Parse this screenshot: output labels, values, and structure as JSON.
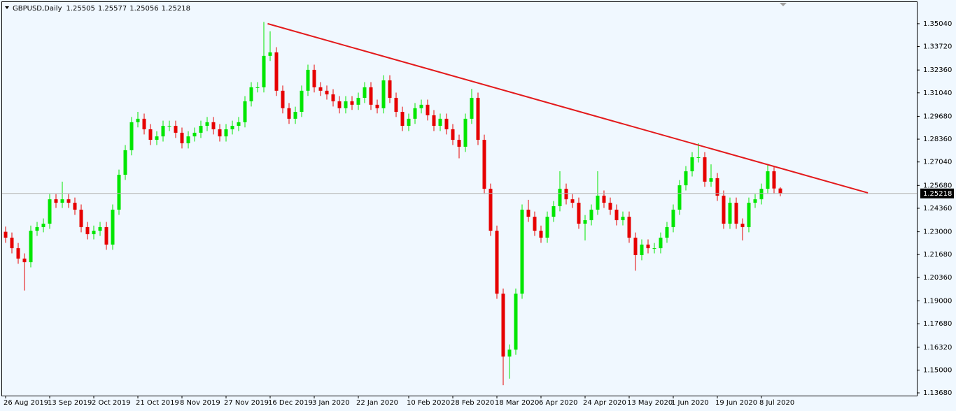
{
  "chart_data": {
    "type": "candlestick",
    "symbol": "GBPUSD,Daily",
    "header_ohlc": [
      1.25505,
      1.25577,
      1.25056,
      1.25218
    ],
    "current_price": 1.25218,
    "up_color": "#00e600",
    "down_color": "#e60000",
    "trendline_color": "#e31a1c",
    "ylim": [
      1.1352,
      1.3633
    ],
    "yticks": [
      {
        "value": 1.3504,
        "label": "1.35040"
      },
      {
        "value": 1.3372,
        "label": "1.33720"
      },
      {
        "value": 1.3236,
        "label": "1.32360"
      },
      {
        "value": 1.3104,
        "label": "1.31040"
      },
      {
        "value": 1.2968,
        "label": "1.29680"
      },
      {
        "value": 1.2836,
        "label": "1.28360"
      },
      {
        "value": 1.2704,
        "label": "1.27040"
      },
      {
        "value": 1.2568,
        "label": "1.25680"
      },
      {
        "value": 1.2436,
        "label": "1.24360"
      },
      {
        "value": 1.23,
        "label": "1.23000"
      },
      {
        "value": 1.2168,
        "label": "1.21680"
      },
      {
        "value": 1.2036,
        "label": "1.20360"
      },
      {
        "value": 1.19,
        "label": "1.19000"
      },
      {
        "value": 1.1768,
        "label": "1.17680"
      },
      {
        "value": 1.1632,
        "label": "1.16320"
      },
      {
        "value": 1.15,
        "label": "1.15000"
      },
      {
        "value": 1.1368,
        "label": "1.13680"
      }
    ],
    "categories": [
      "26 Aug 2019",
      null,
      null,
      null,
      null,
      null,
      null,
      "13 Sep 2019",
      null,
      null,
      null,
      null,
      null,
      null,
      "2 Oct 2019",
      null,
      null,
      null,
      null,
      null,
      null,
      "21 Oct 2019",
      null,
      null,
      null,
      null,
      null,
      null,
      "8 Nov 2019",
      null,
      null,
      null,
      null,
      null,
      null,
      "27 Nov 2019",
      null,
      null,
      null,
      null,
      null,
      null,
      "16 Dec 2019",
      null,
      null,
      null,
      null,
      null,
      null,
      "3 Jan 2020",
      null,
      null,
      null,
      null,
      null,
      null,
      "22 Jan 2020",
      null,
      null,
      null,
      null,
      null,
      null,
      null,
      "10 Feb 2020",
      null,
      null,
      null,
      null,
      null,
      null,
      "28 Feb 2020",
      null,
      null,
      null,
      null,
      null,
      null,
      "18 Mar 2020",
      null,
      null,
      null,
      null,
      null,
      null,
      "6 Apr 2020",
      null,
      null,
      null,
      null,
      null,
      null,
      "24 Apr 2020",
      null,
      null,
      null,
      null,
      null,
      null,
      "13 May 2020",
      null,
      null,
      null,
      null,
      null,
      null,
      "1 Jun 2020",
      null,
      null,
      null,
      null,
      null,
      null,
      "19 Jun 2020",
      null,
      null,
      null,
      null,
      null,
      null,
      "8 Jul 2020",
      null,
      null,
      null
    ],
    "open": [
      1.23,
      1.2266,
      1.2205,
      1.2145,
      1.2124,
      1.2306,
      1.2327,
      1.2347,
      1.2488,
      1.2468,
      1.2488,
      1.2468,
      1.2428,
      1.2327,
      1.2286,
      1.2306,
      1.2327,
      1.2226,
      1.2428,
      1.263,
      1.2772,
      1.2934,
      1.2954,
      1.2893,
      1.2832,
      1.2852,
      1.2913,
      1.2913,
      1.2873,
      1.2812,
      1.2852,
      1.2873,
      1.2913,
      1.2934,
      1.2893,
      1.2852,
      1.2893,
      1.2913,
      1.2934,
      1.3055,
      1.3136,
      1.3136,
      1.3318,
      1.3338,
      1.3116,
      1.3015,
      1.2954,
      1.2994,
      1.3116,
      1.3237,
      1.3136,
      1.3116,
      1.3095,
      1.3055,
      1.3015,
      1.3055,
      1.3035,
      1.3075,
      1.3136,
      1.3035,
      1.3015,
      1.3176,
      1.3075,
      1.2994,
      1.2913,
      1.2954,
      1.3015,
      1.3035,
      1.2974,
      1.2913,
      1.2954,
      1.2893,
      1.2832,
      1.2792,
      1.2954,
      1.3075,
      1.2832,
      1.2549,
      1.2306,
      1.1942,
      1.1578,
      1.1618,
      1.1942,
      1.2428,
      1.2387,
      1.2306,
      1.2266,
      1.2387,
      1.2448,
      1.2549,
      1.2488,
      1.2468,
      1.2347,
      1.2367,
      1.2428,
      1.2509,
      1.2468,
      1.2428,
      1.2367,
      1.2387,
      1.2266,
      1.2165,
      1.2226,
      1.2205,
      1.2205,
      1.2266,
      1.2327,
      1.2428,
      1.2569,
      1.265,
      1.2731,
      1.2731,
      1.259,
      1.261,
      1.2509,
      1.2347,
      1.2468,
      1.2347,
      1.2327,
      1.2468,
      1.2488,
      1.2549,
      1.265,
      1.25505
    ],
    "high": [
      1.233,
      1.2296,
      1.2235,
      1.2175,
      1.2336,
      1.2357,
      1.2377,
      1.2518,
      1.2518,
      1.259,
      1.2518,
      1.2498,
      1.2458,
      1.2357,
      1.2336,
      1.2357,
      1.2357,
      1.2458,
      1.266,
      1.2802,
      1.2964,
      1.2994,
      1.2984,
      1.2923,
      1.2882,
      1.2943,
      1.2943,
      1.2943,
      1.2903,
      1.2882,
      1.2903,
      1.2943,
      1.2964,
      1.2964,
      1.2923,
      1.2923,
      1.2943,
      1.2964,
      1.3085,
      1.3166,
      1.3166,
      1.3514,
      1.346,
      1.3368,
      1.3146,
      1.3045,
      1.3024,
      1.3146,
      1.3267,
      1.3267,
      1.3166,
      1.3146,
      1.3125,
      1.3085,
      1.3085,
      1.3085,
      1.3105,
      1.3166,
      1.3166,
      1.3065,
      1.3206,
      1.3206,
      1.3105,
      1.3024,
      1.2984,
      1.3045,
      1.3065,
      1.3065,
      1.3004,
      1.2984,
      1.2984,
      1.2923,
      1.2862,
      1.2984,
      1.3127,
      1.3105,
      1.2862,
      1.2579,
      1.2336,
      1.1972,
      1.1648,
      1.1972,
      1.2458,
      1.2485,
      1.2417,
      1.2336,
      1.2417,
      1.2478,
      1.265,
      1.2579,
      1.2518,
      1.2498,
      1.2397,
      1.2458,
      1.265,
      1.2539,
      1.2498,
      1.2458,
      1.2417,
      1.2417,
      1.2296,
      1.2256,
      1.2256,
      1.2235,
      1.2296,
      1.2357,
      1.2458,
      1.2599,
      1.268,
      1.2761,
      1.2812,
      1.2761,
      1.269,
      1.264,
      1.2539,
      1.2498,
      1.2498,
      1.2377,
      1.2498,
      1.2518,
      1.2579,
      1.269,
      1.268,
      1.25577
    ],
    "low": [
      1.2236,
      1.2175,
      1.2115,
      1.196,
      1.2094,
      1.2276,
      1.2297,
      1.2317,
      1.2438,
      1.2438,
      1.2438,
      1.2398,
      1.2297,
      1.2256,
      1.2256,
      1.2276,
      1.2196,
      1.2196,
      1.2398,
      1.26,
      1.2742,
      1.2904,
      1.2863,
      1.2802,
      1.2802,
      1.2822,
      1.2883,
      1.2843,
      1.2782,
      1.2782,
      1.2822,
      1.2843,
      1.2883,
      1.2863,
      1.2822,
      1.2822,
      1.2863,
      1.2883,
      1.2904,
      1.3025,
      1.3106,
      1.3106,
      1.3288,
      1.3086,
      1.2985,
      1.2924,
      1.2924,
      1.2964,
      1.3086,
      1.3106,
      1.3086,
      1.3065,
      1.3025,
      1.2985,
      1.2985,
      1.3005,
      1.3005,
      1.3045,
      1.3005,
      1.2985,
      1.2985,
      1.3045,
      1.2964,
      1.2883,
      1.2883,
      1.2924,
      1.2985,
      1.2944,
      1.2883,
      1.2883,
      1.2863,
      1.2802,
      1.2725,
      1.2762,
      1.2924,
      1.2802,
      1.2519,
      1.2276,
      1.1912,
      1.1412,
      1.145,
      1.1588,
      1.1912,
      1.2357,
      1.2276,
      1.2236,
      1.2236,
      1.2357,
      1.2418,
      1.2458,
      1.2438,
      1.2317,
      1.225,
      1.2337,
      1.2398,
      1.2438,
      1.2398,
      1.2337,
      1.2337,
      1.2236,
      1.2075,
      1.2135,
      1.2175,
      1.2175,
      1.2175,
      1.2236,
      1.2297,
      1.2398,
      1.2539,
      1.262,
      1.2701,
      1.256,
      1.256,
      1.2479,
      1.2317,
      1.2317,
      1.2317,
      1.225,
      1.2297,
      1.2438,
      1.2458,
      1.2519,
      1.252,
      1.25056
    ],
    "close": [
      1.2266,
      1.2205,
      1.2145,
      1.2124,
      1.2306,
      1.2327,
      1.2347,
      1.2488,
      1.2468,
      1.2488,
      1.2468,
      1.2428,
      1.2327,
      1.2286,
      1.2306,
      1.2327,
      1.2226,
      1.2428,
      1.263,
      1.2772,
      1.2934,
      1.2954,
      1.2893,
      1.2832,
      1.2852,
      1.2913,
      1.2913,
      1.2873,
      1.2812,
      1.2852,
      1.2873,
      1.2913,
      1.2934,
      1.2893,
      1.2852,
      1.2893,
      1.2913,
      1.2934,
      1.3055,
      1.3136,
      1.3136,
      1.3318,
      1.3338,
      1.3116,
      1.3015,
      1.2954,
      1.2994,
      1.3116,
      1.3237,
      1.3136,
      1.3116,
      1.3095,
      1.3055,
      1.3015,
      1.3055,
      1.3035,
      1.3075,
      1.3136,
      1.3035,
      1.3015,
      1.3176,
      1.3075,
      1.2994,
      1.2913,
      1.2954,
      1.3015,
      1.3035,
      1.2974,
      1.2913,
      1.2954,
      1.2893,
      1.2832,
      1.2792,
      1.2954,
      1.3075,
      1.2832,
      1.2549,
      1.2306,
      1.1942,
      1.1578,
      1.1618,
      1.1942,
      1.2428,
      1.2387,
      1.2306,
      1.2266,
      1.2387,
      1.2448,
      1.2549,
      1.2488,
      1.2468,
      1.2347,
      1.2367,
      1.2428,
      1.2509,
      1.2468,
      1.2428,
      1.2367,
      1.2387,
      1.2266,
      1.2165,
      1.2226,
      1.2205,
      1.2205,
      1.2266,
      1.2327,
      1.2428,
      1.2569,
      1.265,
      1.2731,
      1.2731,
      1.259,
      1.261,
      1.2509,
      1.2347,
      1.2468,
      1.2347,
      1.2327,
      1.2468,
      1.2488,
      1.2549,
      1.265,
      1.25505,
      1.25218
    ],
    "trendline": {
      "x": [
        41.6,
        136.9
      ],
      "y": [
        1.3504,
        1.2525
      ]
    }
  }
}
